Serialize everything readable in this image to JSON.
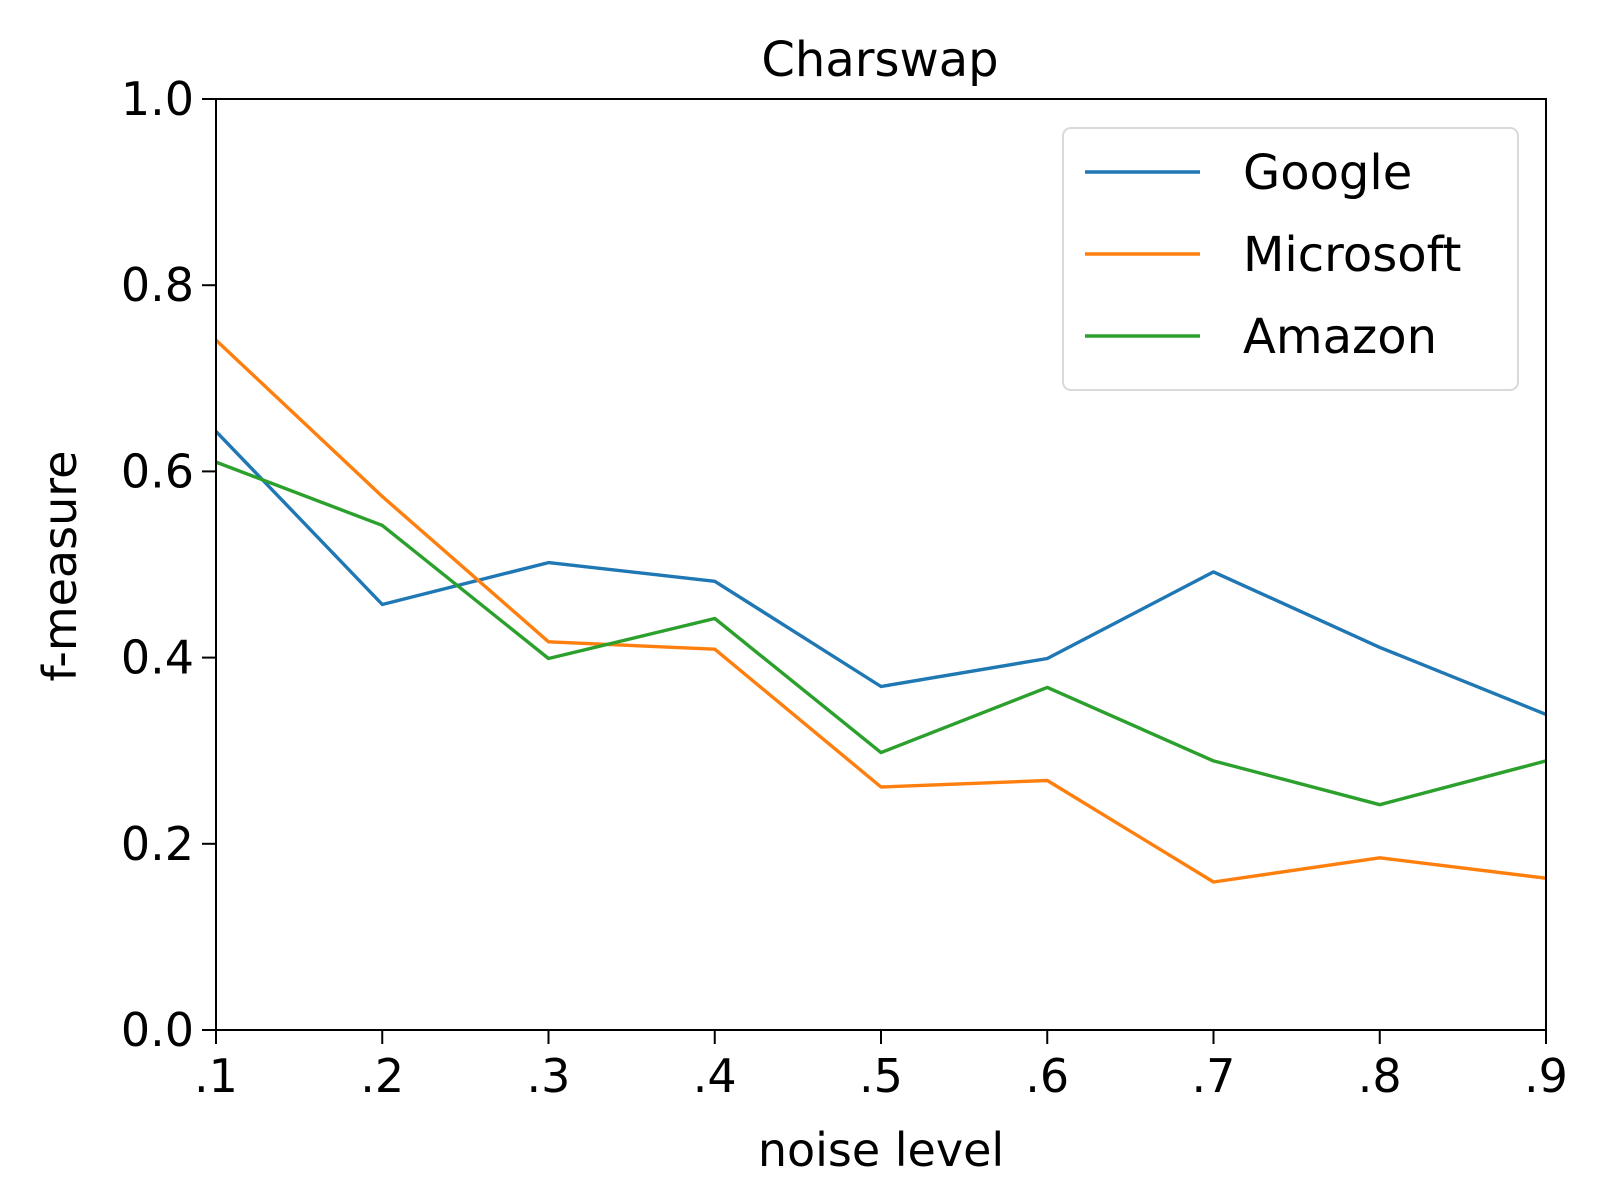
{
  "chart_data": {
    "type": "line",
    "title": "Charswap",
    "xlabel": "noise level",
    "ylabel": "f-measure",
    "categories": [
      ".1",
      ".2",
      ".3",
      ".4",
      ".5",
      ".6",
      ".7",
      ".8",
      ".9"
    ],
    "x": [
      0.1,
      0.2,
      0.3,
      0.4,
      0.5,
      0.6,
      0.7,
      0.8,
      0.9
    ],
    "xlim": [
      0.1,
      0.9
    ],
    "ylim": [
      0.0,
      1.0
    ],
    "yticks": [
      0.0,
      0.2,
      0.4,
      0.6,
      0.8,
      1.0
    ],
    "ytick_labels": [
      "0.0",
      "0.2",
      "0.4",
      "0.6",
      "0.8",
      "1.0"
    ],
    "grid": false,
    "legend_position": "top-right",
    "series": [
      {
        "name": "Google",
        "color": "#1f77b4",
        "values": [
          0.643,
          0.457,
          0.502,
          0.482,
          0.369,
          0.399,
          0.492,
          0.411,
          0.339
        ]
      },
      {
        "name": "Microsoft",
        "color": "#ff7f0e",
        "values": [
          0.741,
          0.573,
          0.417,
          0.409,
          0.261,
          0.268,
          0.159,
          0.185,
          0.163
        ]
      },
      {
        "name": "Amazon",
        "color": "#2ca02c",
        "values": [
          0.61,
          0.542,
          0.399,
          0.442,
          0.298,
          0.368,
          0.289,
          0.242,
          0.289
        ]
      }
    ]
  }
}
